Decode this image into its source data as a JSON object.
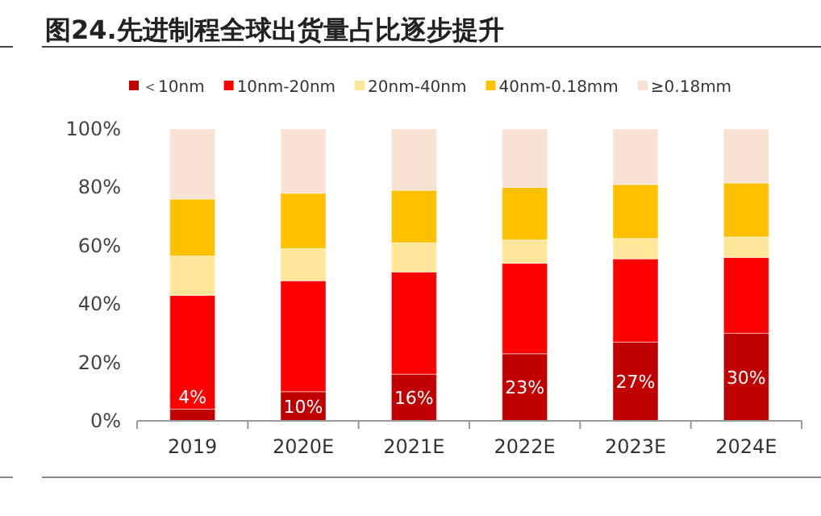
{
  "chart_data": {
    "type": "bar",
    "title": "图24.先进制程全球出货量占比逐步提升",
    "categories": [
      "2019",
      "2020E",
      "2021E",
      "2022E",
      "2023E",
      "2024E"
    ],
    "stacked": true,
    "series": [
      {
        "name": "＜10nm",
        "color": "#c00000",
        "values": [
          4,
          10,
          16,
          23,
          27,
          30
        ],
        "value_labels": [
          "4%",
          "10%",
          "16%",
          "23%",
          "27%",
          "30%"
        ]
      },
      {
        "name": "10nm-20nm",
        "color": "#ff0000",
        "values": [
          39,
          38,
          35,
          31,
          28.5,
          26
        ]
      },
      {
        "name": "20nm-40nm",
        "color": "#ffe699",
        "values": [
          13.5,
          11,
          10,
          8,
          7,
          7
        ]
      },
      {
        "name": "40nm-0.18mm",
        "color": "#ffc000",
        "values": [
          19.5,
          19,
          18,
          18,
          18.5,
          18.5
        ]
      },
      {
        "name": "≥0.18mm",
        "color": "#f8e2d4",
        "values": [
          24,
          22,
          21,
          20,
          19,
          18.5
        ]
      }
    ],
    "ylim": [
      0,
      100
    ],
    "yticks": [
      {
        "value": 0,
        "label": "0%"
      },
      {
        "value": 20,
        "label": "20%"
      },
      {
        "value": 40,
        "label": "40%"
      },
      {
        "value": 60,
        "label": "60%"
      },
      {
        "value": 80,
        "label": "80%"
      },
      {
        "value": 100,
        "label": "100%"
      }
    ],
    "legend": "top"
  }
}
